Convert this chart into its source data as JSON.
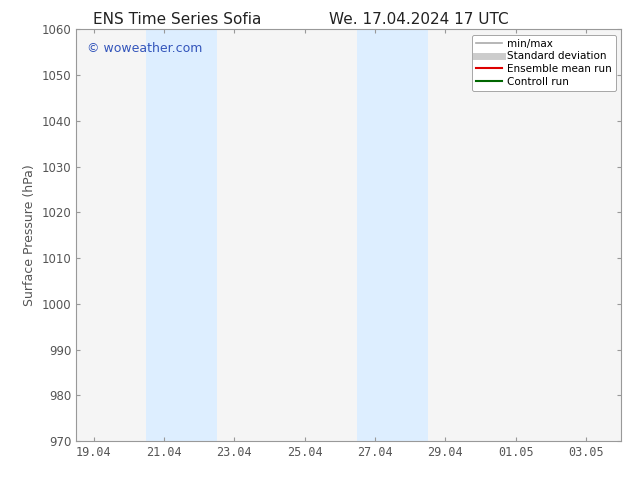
{
  "title_left": "ENS Time Series Sofia",
  "title_right": "We. 17.04.2024 17 UTC",
  "ylabel": "Surface Pressure (hPa)",
  "ylim": [
    970,
    1060
  ],
  "yticks": [
    970,
    980,
    990,
    1000,
    1010,
    1020,
    1030,
    1040,
    1050,
    1060
  ],
  "xtick_labels": [
    "19.04",
    "21.04",
    "23.04",
    "25.04",
    "27.04",
    "29.04",
    "01.05",
    "03.05"
  ],
  "xtick_positions": [
    0,
    2,
    4,
    6,
    8,
    10,
    12,
    14
  ],
  "xlim": [
    -0.5,
    15.0
  ],
  "shaded_bands": [
    {
      "xmin": 1.5,
      "xmax": 3.5
    },
    {
      "xmin": 7.5,
      "xmax": 9.5
    }
  ],
  "shade_color": "#ddeeff",
  "watermark_text": "© woweather.com",
  "watermark_color": "#3355bb",
  "legend_items": [
    {
      "label": "min/max",
      "color": "#aaaaaa",
      "lw": 1.2,
      "ls": "-"
    },
    {
      "label": "Standard deviation",
      "color": "#cccccc",
      "lw": 5,
      "ls": "-"
    },
    {
      "label": "Ensemble mean run",
      "color": "#dd0000",
      "lw": 1.5,
      "ls": "-"
    },
    {
      "label": "Controll run",
      "color": "#006600",
      "lw": 1.5,
      "ls": "-"
    }
  ],
  "bg_color": "#ffffff",
  "plot_bg_color": "#f5f5f5",
  "spine_color": "#999999",
  "tick_color": "#555555",
  "title_fontsize": 11,
  "tick_fontsize": 8.5,
  "ylabel_fontsize": 9,
  "watermark_fontsize": 9,
  "legend_fontsize": 7.5
}
